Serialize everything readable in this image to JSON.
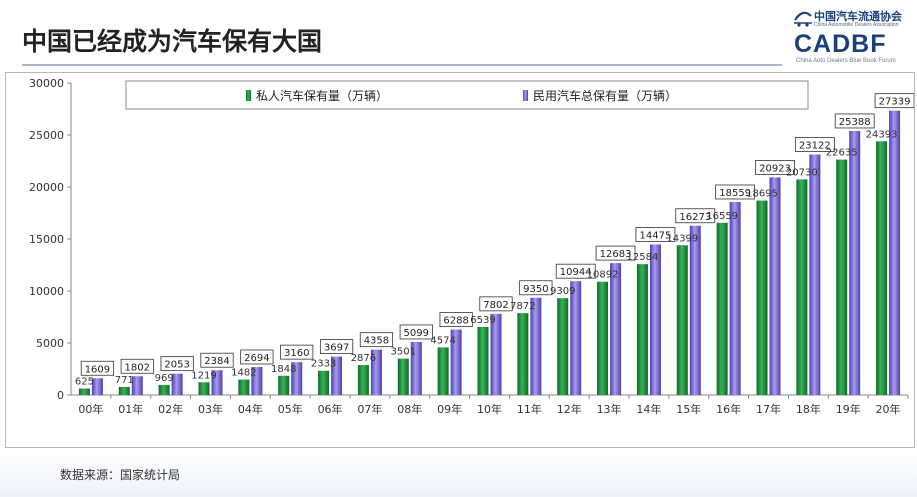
{
  "page": {
    "title": "中国已经成为汽车保有大国",
    "source": "数据来源：国家统计局"
  },
  "logo": {
    "cn_name": "中国汽车流通协会",
    "en_name": "China Automobile Dealers Association",
    "wordmark": "CADBF",
    "subtitle": "China Auto Dealers Blue Book Forum",
    "accent": "#1d3f7a"
  },
  "chart_data": {
    "type": "bar",
    "title": "",
    "xlabel": "",
    "ylabel": "",
    "ylim": [
      0,
      30000
    ],
    "yticks": [
      0,
      5000,
      10000,
      15000,
      20000,
      25000,
      30000
    ],
    "grid": false,
    "legend_position": "top",
    "categories": [
      "00年",
      "01年",
      "02年",
      "03年",
      "04年",
      "05年",
      "06年",
      "07年",
      "08年",
      "09年",
      "10年",
      "11年",
      "12年",
      "13年",
      "14年",
      "15年",
      "16年",
      "17年",
      "18年",
      "19年",
      "20年"
    ],
    "series": [
      {
        "name": "私人汽车保有量（万辆）",
        "color": "#1f8a3a",
        "values": [
          625,
          771,
          969,
          1219,
          1482,
          1848,
          2333,
          2876,
          3501,
          4574,
          6539,
          7872,
          9309,
          10892,
          12584,
          14399,
          16559,
          18695,
          20730,
          22635,
          24393
        ],
        "labels": [
          "625",
          "771",
          "969",
          "1219",
          "1482",
          "1848",
          "2333",
          "2876",
          "3501",
          "4574",
          "6539",
          "7872",
          "9309",
          "10892",
          "12584",
          "14399",
          "16559",
          "18695",
          "20730",
          "22635",
          "24393"
        ]
      },
      {
        "name": "民用汽车总保有量（万辆）",
        "color": "#7b6fd6",
        "values": [
          1609,
          1802,
          2053,
          2384,
          2694,
          3160,
          3697,
          4358,
          5099,
          6288,
          7802,
          9350,
          10944,
          12683,
          14475,
          16273,
          18559,
          20923,
          23122,
          25388,
          27339
        ],
        "labels": [
          "1609",
          "1802",
          "2053",
          "2384",
          "2694",
          "3160",
          "3697",
          "4358",
          "5099",
          "6288",
          "7802",
          "9350",
          "10944",
          "12683",
          "14475",
          "16273",
          "18559",
          "20923",
          "23122",
          "25388",
          "27339"
        ]
      }
    ]
  }
}
